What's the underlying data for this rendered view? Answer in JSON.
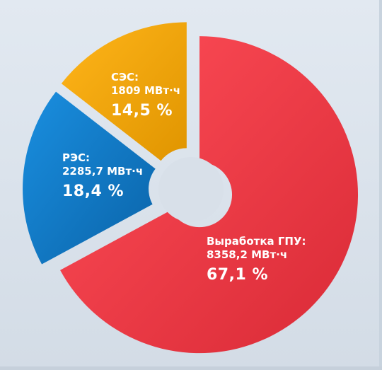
{
  "chart_data": {
    "type": "pie",
    "style": "donut-exploded",
    "slices": [
      {
        "name": "Выработка ГПУ:",
        "value": "8358,2 МВт·ч",
        "percent_label": "67,1 %",
        "percent": 67.1,
        "color": "#e8333f",
        "color_light": "#ff4e58"
      },
      {
        "name": "РЭС:",
        "value": "2285,7 МВт·ч",
        "percent_label": "18,4 %",
        "percent": 18.4,
        "color": "#0e76c4",
        "color_light": "#1a8fe0"
      },
      {
        "name": "СЭС:",
        "value": "1809 МВт·ч",
        "percent_label": "14,5 %",
        "percent": 14.5,
        "color": "#f5a400",
        "color_light": "#ffb51a"
      }
    ]
  }
}
